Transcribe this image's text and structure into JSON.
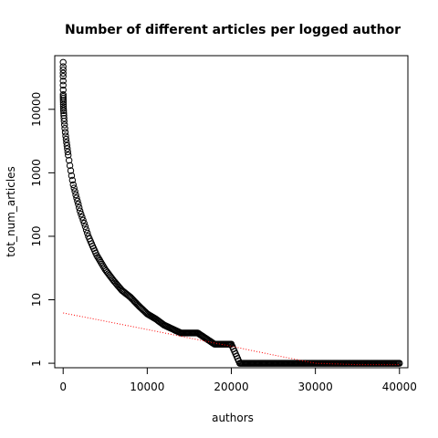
{
  "chart_data": {
    "type": "scatter",
    "title": "Number of different articles per logged author",
    "xlabel": "authors",
    "ylabel": "tot_num_articles",
    "xlim": [
      -1000,
      41000
    ],
    "ylim": [
      0.85,
      70000
    ],
    "y_scale": "log",
    "x_ticks": [
      0,
      10000,
      20000,
      30000,
      40000
    ],
    "x_tick_labels": [
      "0",
      "10000",
      "20000",
      "30000",
      "40000"
    ],
    "y_ticks": [
      1,
      10,
      100,
      1000,
      10000
    ],
    "y_tick_labels": [
      "1",
      "10",
      "100",
      "1000",
      "10000"
    ],
    "grid": false,
    "series": [
      {
        "marker": "circle-open",
        "color": "#000000",
        "points": [
          [
            0,
            55000
          ],
          [
            0,
            47000
          ],
          [
            0,
            42000
          ],
          [
            0,
            37000
          ],
          [
            0,
            33000
          ],
          [
            0,
            28000
          ],
          [
            0,
            24000
          ],
          [
            5,
            17000
          ],
          [
            10,
            15000
          ],
          [
            20,
            13000
          ],
          [
            30,
            11000
          ],
          [
            50,
            9500
          ],
          [
            80,
            8000
          ],
          [
            120,
            6500
          ],
          [
            200,
            5000
          ],
          [
            300,
            3800
          ],
          [
            400,
            3000
          ],
          [
            500,
            2400
          ],
          [
            600,
            1900
          ],
          [
            800,
            1300
          ],
          [
            1000,
            900
          ],
          [
            1200,
            650
          ],
          [
            1500,
            450
          ],
          [
            1800,
            320
          ],
          [
            2000,
            250
          ],
          [
            2500,
            160
          ],
          [
            3000,
            100
          ],
          [
            3500,
            70
          ],
          [
            4000,
            50
          ],
          [
            5000,
            30
          ],
          [
            6000,
            20
          ],
          [
            7000,
            14
          ],
          [
            8000,
            11
          ],
          [
            9000,
            8
          ],
          [
            10000,
            6
          ],
          [
            11000,
            5
          ],
          [
            12000,
            4
          ],
          [
            14000,
            3
          ],
          [
            16000,
            3
          ],
          [
            18000,
            2
          ],
          [
            20000,
            2
          ],
          [
            21000,
            1
          ],
          [
            25000,
            1
          ],
          [
            30000,
            1
          ],
          [
            35000,
            1
          ],
          [
            40000,
            1
          ]
        ]
      },
      {
        "marker": "dotted-line",
        "color": "#ff0000",
        "points": [
          [
            0,
            6.2
          ],
          [
            5000,
            4.6
          ],
          [
            10000,
            3.4
          ],
          [
            15000,
            2.5
          ],
          [
            20000,
            1.85
          ],
          [
            25000,
            1.35
          ],
          [
            30000,
            1.0
          ],
          [
            35000,
            0.95
          ],
          [
            40000,
            0.95
          ]
        ]
      }
    ]
  }
}
